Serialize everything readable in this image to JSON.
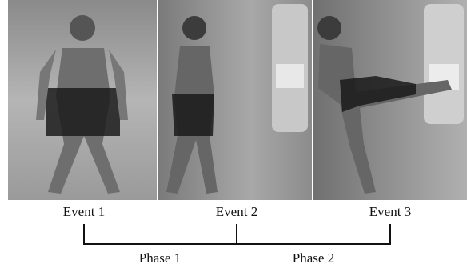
{
  "events": [
    "Event 1",
    "Event 2",
    "Event 3"
  ],
  "phases": [
    "Phase 1",
    "Phase 2"
  ]
}
